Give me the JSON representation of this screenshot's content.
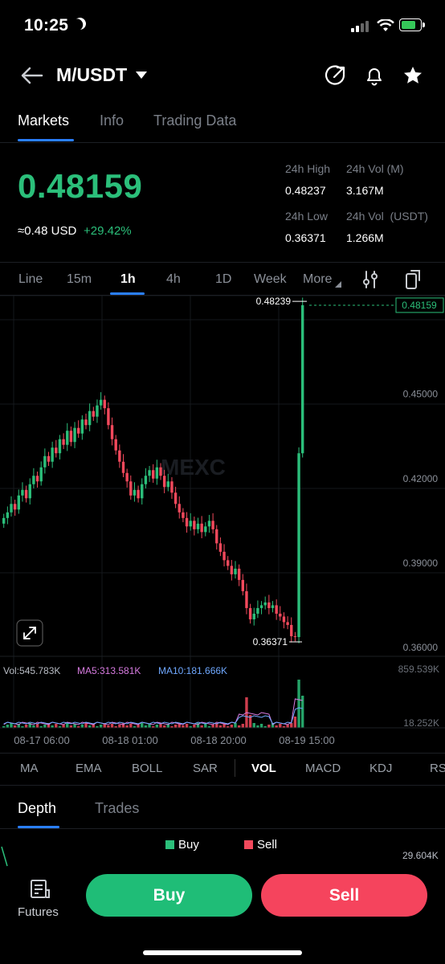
{
  "status": {
    "time": "10:25"
  },
  "header": {
    "pair": "M/USDT"
  },
  "tabs": [
    {
      "label": "Markets",
      "active": true
    },
    {
      "label": "Info"
    },
    {
      "label": "Trading Data"
    }
  ],
  "ticker": {
    "price": "0.48159",
    "usd_approx": "≈0.48",
    "usd_unit": "USD",
    "change": "+29.42%",
    "stats": [
      {
        "label": "24h High",
        "value": "0.48237"
      },
      {
        "label": "24h Vol (M)",
        "value": "3.167M"
      },
      {
        "label": "24h Low",
        "value": "0.36371"
      },
      {
        "label": "24h Vol  (USDT)",
        "value": "1.266M"
      }
    ]
  },
  "timeframes": [
    "Line",
    "15m",
    "1h",
    "4h",
    "1D",
    "Week",
    "More"
  ],
  "active_timeframe": "1h",
  "chart_data": {
    "type": "candlestick",
    "y_ticks": [
      "0.45000",
      "0.42000",
      "0.39000",
      "0.36000"
    ],
    "y_range": [
      0.358,
      0.485
    ],
    "current_price_label": "0.48159",
    "high_marker": "0.48239",
    "low_marker": "0.36371",
    "watermark": "MEXC",
    "x_ticks": [
      "08-17 06:00",
      "08-18 01:00",
      "08-18 20:00",
      "08-19 15:00"
    ],
    "volume": {
      "vol": "Vol:545.783K",
      "ma5": "MA5:313.581K",
      "ma10": "MA10:181.666K",
      "max_label": "859.539K",
      "min_label": "18.252K"
    },
    "closes": [
      0.406,
      0.408,
      0.411,
      0.409,
      0.414,
      0.416,
      0.413,
      0.418,
      0.421,
      0.419,
      0.424,
      0.428,
      0.426,
      0.431,
      0.429,
      0.434,
      0.432,
      0.437,
      0.433,
      0.438,
      0.436,
      0.441,
      0.439,
      0.444,
      0.442,
      0.446,
      0.448,
      0.445,
      0.439,
      0.434,
      0.43,
      0.426,
      0.422,
      0.419,
      0.414,
      0.416,
      0.413,
      0.418,
      0.421,
      0.423,
      0.42,
      0.424,
      0.421,
      0.417,
      0.419,
      0.415,
      0.411,
      0.408,
      0.406,
      0.403,
      0.405,
      0.402,
      0.404,
      0.401,
      0.403,
      0.405,
      0.402,
      0.397,
      0.394,
      0.391,
      0.389,
      0.386,
      0.388,
      0.384,
      0.38,
      0.374,
      0.37,
      0.372,
      0.374,
      0.375,
      0.376,
      0.374,
      0.375,
      0.372,
      0.371,
      0.369,
      0.368,
      0.364,
      0.3637,
      0.429,
      0.4816
    ]
  },
  "indicators": [
    "MA",
    "EMA",
    "BOLL",
    "SAR",
    "VOL",
    "MACD",
    "KDJ",
    "RS"
  ],
  "active_indicator": "VOL",
  "depth": {
    "tabs": [
      "Depth",
      "Trades"
    ],
    "buy_legend": "Buy",
    "sell_legend": "Sell",
    "top_value": "29.604K"
  },
  "bottom": {
    "futures_label": "Futures",
    "buy_label": "Buy",
    "sell_label": "Sell"
  },
  "colors": {
    "up": "#2bbf7a",
    "down": "#f2495c",
    "accent": "#2a7fff"
  }
}
